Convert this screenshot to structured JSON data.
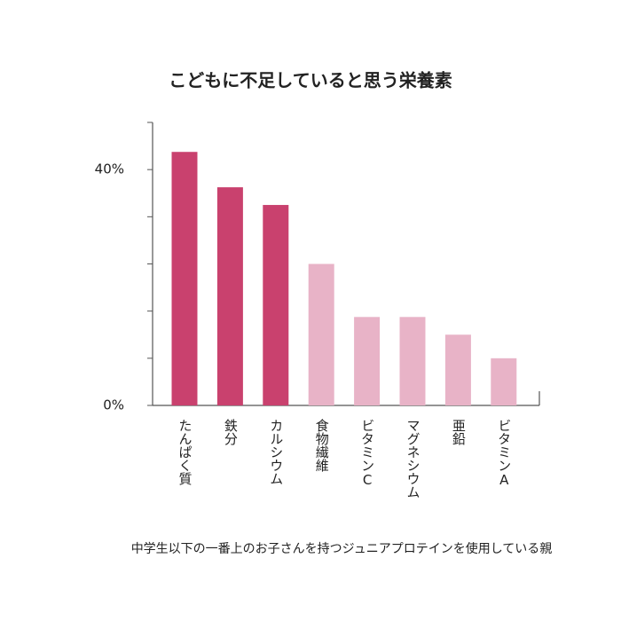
{
  "chart_data": {
    "type": "bar",
    "title": "こどもに不足していると思う栄養素",
    "categories": [
      "たんぱく質",
      "鉄分",
      "カルシウム",
      "食物繊維",
      "ビタミンC",
      "マグネシウム",
      "亜鉛",
      "ビタミンA"
    ],
    "values": [
      43,
      37,
      34,
      24,
      15,
      15,
      12,
      8
    ],
    "colors": [
      "#c9416e",
      "#c9416e",
      "#c9416e",
      "#e8b3c7",
      "#e8b3c7",
      "#e8b3c7",
      "#e8b3c7",
      "#e8b3c7"
    ],
    "ylim": [
      0,
      48
    ],
    "yticks": [
      {
        "value": 0,
        "label": "0%"
      },
      {
        "value": 40,
        "label": "40%"
      }
    ],
    "minor_yticks": [
      8,
      16,
      24,
      32,
      48
    ],
    "note": "中学生以下の一番上のお子さんを持つジュニアプロテインを使用している親"
  }
}
